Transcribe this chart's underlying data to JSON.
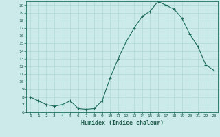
{
  "x": [
    0,
    1,
    2,
    3,
    4,
    5,
    6,
    7,
    8,
    9,
    10,
    11,
    12,
    13,
    14,
    15,
    16,
    17,
    18,
    19,
    20,
    21,
    22,
    23
  ],
  "y": [
    8.0,
    7.5,
    7.0,
    6.8,
    7.0,
    7.5,
    6.5,
    6.4,
    6.5,
    7.5,
    10.5,
    13.0,
    15.2,
    17.0,
    18.5,
    19.2,
    20.5,
    20.0,
    19.5,
    18.3,
    16.2,
    14.6,
    12.2,
    11.5
  ],
  "xlabel": "Humidex (Indice chaleur)",
  "xlim": [
    -0.5,
    23.5
  ],
  "ylim": [
    6,
    20.5
  ],
  "yticks": [
    6,
    7,
    8,
    9,
    10,
    11,
    12,
    13,
    14,
    15,
    16,
    17,
    18,
    19,
    20
  ],
  "xticks": [
    0,
    1,
    2,
    3,
    4,
    5,
    6,
    7,
    8,
    9,
    10,
    11,
    12,
    13,
    14,
    15,
    16,
    17,
    18,
    19,
    20,
    21,
    22,
    23
  ],
  "line_color": "#1a6b5a",
  "marker": "+",
  "bg_color": "#cdeaea",
  "grid_color": "#b0d8d8",
  "tick_label_color": "#1a5c4a",
  "axis_color": "#1a6b5a"
}
